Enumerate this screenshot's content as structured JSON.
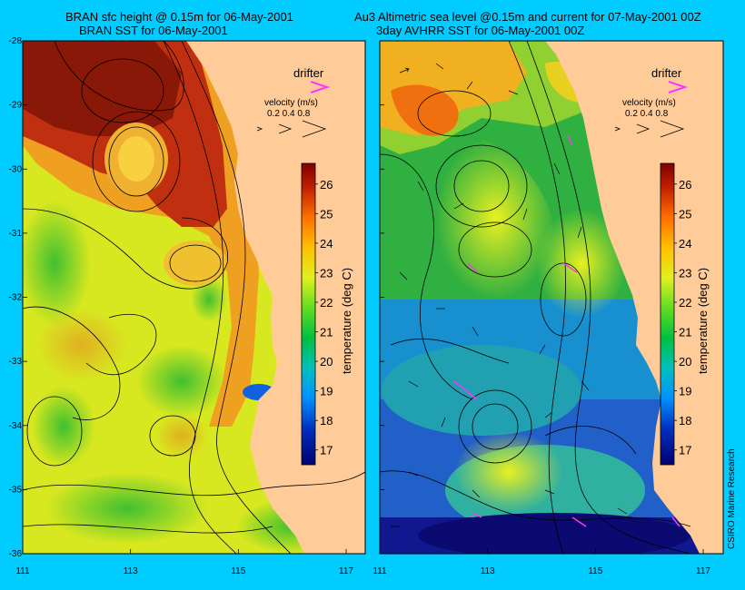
{
  "titles": {
    "left_line1": "BRAN sfc height @ 0.15m for 06-May-2001",
    "left_line2": "BRAN SST for 06-May-2001",
    "right_line1": "Au3 Altimetric sea level  @0.15m and current for 07-May-2001 00Z",
    "right_line2": "3day AVHRR SST for 06-May-2001 00Z"
  },
  "axes": {
    "lon_ticks": [
      "111",
      "113",
      "115",
      "117"
    ],
    "lat_ticks": [
      "-28",
      "-29",
      "-30",
      "-31",
      "-32",
      "-33",
      "-34",
      "-35",
      "-36"
    ]
  },
  "legend": {
    "drifter_label": "drifter",
    "velocity_label": "velocity (m/s)",
    "velocity_values": "0.2 0.4 0.8"
  },
  "colorbar": {
    "label": "temperature (deg C)",
    "ticks": [
      "26",
      "25",
      "24",
      "23",
      "22",
      "21",
      "20",
      "19",
      "18",
      "17"
    ],
    "range": [
      16.5,
      26.7
    ]
  },
  "credit": "CSIRO Marine Research",
  "colors": {
    "background": "#00ccff",
    "land": "#ffcc99",
    "drifter": "#ff33ff"
  }
}
